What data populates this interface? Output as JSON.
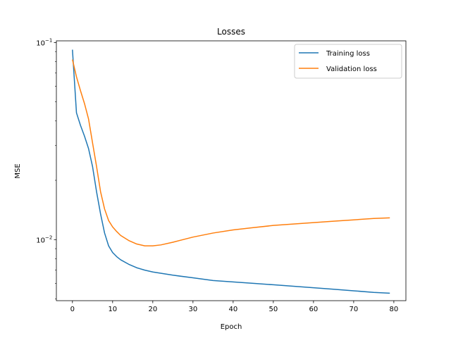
{
  "chart_data": {
    "type": "line",
    "title": "Losses",
    "xlabel": "Epoch",
    "ylabel": "MSE",
    "yscale": "log",
    "xlim": [
      -4,
      83
    ],
    "ylim": [
      0.0049,
      0.102
    ],
    "x_ticks": [
      0,
      10,
      20,
      30,
      40,
      50,
      60,
      70,
      80
    ],
    "x_tick_labels": [
      "0",
      "10",
      "20",
      "30",
      "40",
      "50",
      "60",
      "70",
      "80"
    ],
    "y_ticks": [
      0.01,
      0.1
    ],
    "y_tick_labels": [
      {
        "base": "10",
        "exp": "−2"
      },
      {
        "base": "10",
        "exp": "−1"
      }
    ],
    "y_minor_ticks": [
      0.005,
      0.006,
      0.007,
      0.008,
      0.009,
      0.02,
      0.03,
      0.04,
      0.05,
      0.06,
      0.07,
      0.08,
      0.09
    ],
    "grid": false,
    "legend_position": "upper right",
    "series": [
      {
        "name": "Training loss",
        "color": "#1f77b4",
        "x": [
          0,
          1,
          2,
          3,
          4,
          5,
          6,
          7,
          8,
          9,
          10,
          11,
          12,
          14,
          16,
          18,
          20,
          25,
          30,
          35,
          40,
          45,
          50,
          55,
          60,
          65,
          70,
          75,
          79
        ],
        "y": [
          0.092,
          0.044,
          0.038,
          0.0335,
          0.029,
          0.0235,
          0.0175,
          0.0135,
          0.0108,
          0.0093,
          0.0086,
          0.0082,
          0.0079,
          0.0075,
          0.0072,
          0.007,
          0.00685,
          0.0066,
          0.0064,
          0.0062,
          0.0061,
          0.006,
          0.0059,
          0.0058,
          0.0057,
          0.0056,
          0.0055,
          0.0054,
          0.00535
        ]
      },
      {
        "name": "Validation loss",
        "color": "#ff7f0e",
        "x": [
          0,
          1,
          2,
          3,
          4,
          5,
          6,
          7,
          8,
          9,
          10,
          11,
          12,
          14,
          16,
          18,
          20,
          22,
          25,
          30,
          35,
          40,
          45,
          50,
          55,
          60,
          65,
          70,
          75,
          79
        ],
        "y": [
          0.082,
          0.067,
          0.057,
          0.049,
          0.041,
          0.031,
          0.0235,
          0.0175,
          0.0143,
          0.0125,
          0.0116,
          0.011,
          0.0105,
          0.0099,
          0.0095,
          0.0093,
          0.0093,
          0.0094,
          0.0097,
          0.0103,
          0.0108,
          0.0112,
          0.0115,
          0.0118,
          0.012,
          0.0122,
          0.0124,
          0.0126,
          0.0128,
          0.0129
        ]
      }
    ]
  }
}
